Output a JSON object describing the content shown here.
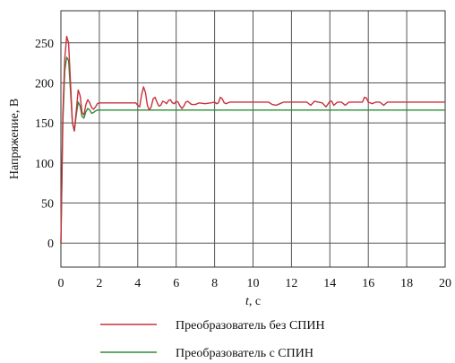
{
  "chart_data": {
    "type": "line",
    "xlabel": "t, с",
    "ylabel": "Напряжение, В",
    "xlim": [
      0,
      20
    ],
    "ylim": [
      -30,
      290
    ],
    "x_ticks": [
      0,
      2,
      4,
      6,
      8,
      10,
      12,
      14,
      16,
      18,
      20
    ],
    "y_ticks": [
      0,
      50,
      100,
      150,
      200,
      250
    ],
    "grid": true,
    "legend_position": "bottom",
    "series": [
      {
        "name": "Преобразователь без СПИН",
        "color": "#c8323c",
        "points": [
          [
            0,
            0
          ],
          [
            0.1,
            160
          ],
          [
            0.2,
            230
          ],
          [
            0.3,
            258
          ],
          [
            0.4,
            250
          ],
          [
            0.5,
            200
          ],
          [
            0.6,
            150
          ],
          [
            0.7,
            140
          ],
          [
            0.8,
            165
          ],
          [
            0.9,
            191
          ],
          [
            1.0,
            184
          ],
          [
            1.1,
            163
          ],
          [
            1.2,
            160
          ],
          [
            1.3,
            173
          ],
          [
            1.4,
            179
          ],
          [
            1.5,
            175
          ],
          [
            1.6,
            169
          ],
          [
            1.7,
            167
          ],
          [
            1.8,
            170
          ],
          [
            1.9,
            174
          ],
          [
            2.0,
            175
          ],
          [
            2.3,
            175
          ],
          [
            2.7,
            175
          ],
          [
            3.0,
            175
          ],
          [
            3.5,
            175
          ],
          [
            3.9,
            175
          ],
          [
            4.0,
            172
          ],
          [
            4.1,
            170
          ],
          [
            4.2,
            185
          ],
          [
            4.3,
            195
          ],
          [
            4.4,
            188
          ],
          [
            4.5,
            172
          ],
          [
            4.6,
            166
          ],
          [
            4.7,
            170
          ],
          [
            4.8,
            180
          ],
          [
            4.9,
            182
          ],
          [
            5.0,
            176
          ],
          [
            5.1,
            171
          ],
          [
            5.2,
            172
          ],
          [
            5.3,
            177
          ],
          [
            5.4,
            176
          ],
          [
            5.5,
            174
          ],
          [
            5.6,
            178
          ],
          [
            5.7,
            179
          ],
          [
            5.8,
            175
          ],
          [
            5.9,
            174
          ],
          [
            6.0,
            177
          ],
          [
            6.1,
            176
          ],
          [
            6.2,
            171
          ],
          [
            6.3,
            168
          ],
          [
            6.4,
            171
          ],
          [
            6.5,
            176
          ],
          [
            6.6,
            177
          ],
          [
            6.7,
            175
          ],
          [
            6.8,
            173
          ],
          [
            7.0,
            173
          ],
          [
            7.2,
            175
          ],
          [
            7.5,
            174
          ],
          [
            7.8,
            175
          ],
          [
            8.0,
            176
          ],
          [
            8.1,
            174
          ],
          [
            8.2,
            175
          ],
          [
            8.3,
            182
          ],
          [
            8.4,
            180
          ],
          [
            8.5,
            175
          ],
          [
            8.6,
            174
          ],
          [
            8.8,
            176
          ],
          [
            9.0,
            176
          ],
          [
            9.5,
            176
          ],
          [
            10.0,
            176
          ],
          [
            10.5,
            176
          ],
          [
            10.8,
            176
          ],
          [
            11.0,
            173
          ],
          [
            11.2,
            172
          ],
          [
            11.4,
            174
          ],
          [
            11.6,
            176
          ],
          [
            12.0,
            176
          ],
          [
            12.5,
            176
          ],
          [
            12.8,
            176
          ],
          [
            13.0,
            172
          ],
          [
            13.2,
            177
          ],
          [
            13.4,
            176
          ],
          [
            13.6,
            175
          ],
          [
            13.8,
            170
          ],
          [
            14.0,
            177
          ],
          [
            14.1,
            177
          ],
          [
            14.2,
            172
          ],
          [
            14.4,
            176
          ],
          [
            14.6,
            176
          ],
          [
            14.8,
            172
          ],
          [
            15.0,
            176
          ],
          [
            15.5,
            176
          ],
          [
            15.7,
            176
          ],
          [
            15.8,
            182
          ],
          [
            15.9,
            181
          ],
          [
            16.0,
            176
          ],
          [
            16.2,
            174
          ],
          [
            16.4,
            176
          ],
          [
            16.6,
            176
          ],
          [
            16.8,
            172
          ],
          [
            17.0,
            176
          ],
          [
            17.5,
            176
          ],
          [
            18.0,
            176
          ],
          [
            19.0,
            176
          ],
          [
            20.0,
            176
          ]
        ]
      },
      {
        "name": "Преобразователь с СПИН",
        "color": "#2e8b3a",
        "points": [
          [
            0,
            0
          ],
          [
            0.1,
            150
          ],
          [
            0.2,
            215
          ],
          [
            0.3,
            232
          ],
          [
            0.4,
            228
          ],
          [
            0.5,
            190
          ],
          [
            0.6,
            150
          ],
          [
            0.7,
            140
          ],
          [
            0.8,
            160
          ],
          [
            0.9,
            176
          ],
          [
            1.0,
            171
          ],
          [
            1.1,
            158
          ],
          [
            1.2,
            156
          ],
          [
            1.3,
            164
          ],
          [
            1.4,
            168
          ],
          [
            1.5,
            166
          ],
          [
            1.6,
            162
          ],
          [
            1.7,
            163
          ],
          [
            1.8,
            165
          ],
          [
            1.9,
            166
          ],
          [
            2.0,
            166
          ],
          [
            3.0,
            166
          ],
          [
            5.0,
            166
          ],
          [
            8.0,
            166
          ],
          [
            10.0,
            166
          ],
          [
            12.0,
            166
          ],
          [
            14.0,
            166
          ],
          [
            16.0,
            166
          ],
          [
            18.0,
            166
          ],
          [
            20.0,
            166
          ]
        ]
      }
    ]
  }
}
